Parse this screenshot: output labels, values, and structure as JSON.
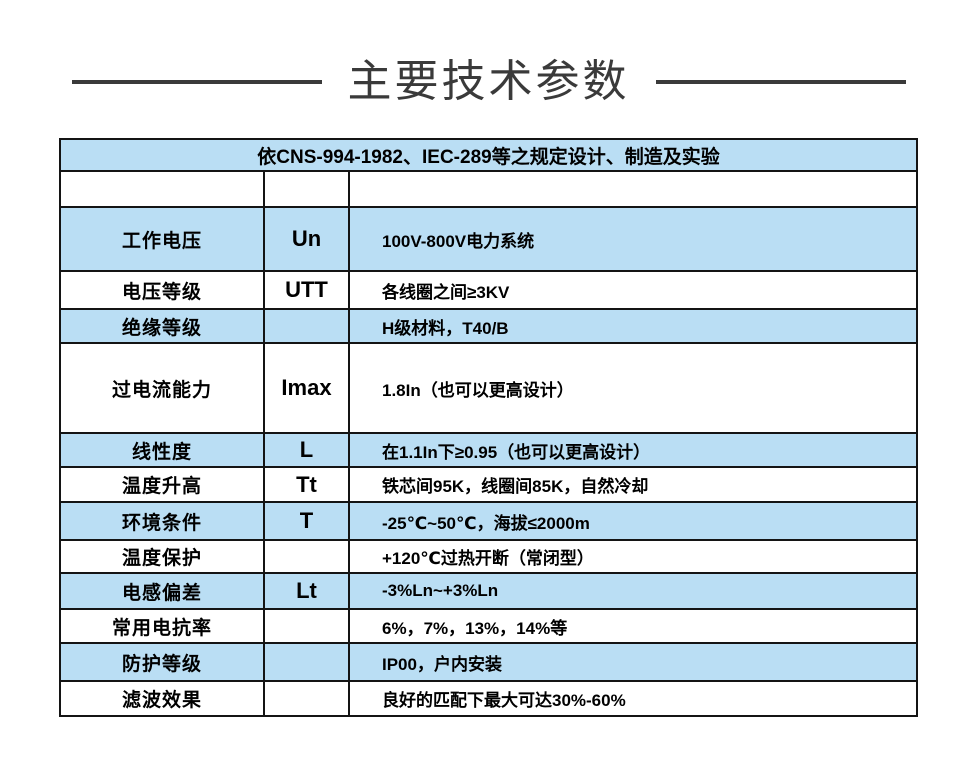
{
  "page": {
    "title": "主要技术参数"
  },
  "table": {
    "header": "依CNS-994-1982、IEC-289等之规定设计、制造及实验",
    "rows": [
      {
        "param": "",
        "symbol": "",
        "value": ""
      },
      {
        "param": "工作电压",
        "symbol": "Un",
        "value": "100V-800V电力系统"
      },
      {
        "param": "电压等级",
        "symbol": "UTT",
        "value": "各线圈之间≥3KV"
      },
      {
        "param": "绝缘等级",
        "symbol": "",
        "value": "H级材料，T40/B"
      },
      {
        "param": "过电流能力",
        "symbol": "Imax",
        "value": "1.8In（也可以更高设计）"
      },
      {
        "param": "线性度",
        "symbol": "L",
        "value": "在1.1In下≥0.95（也可以更高设计）"
      },
      {
        "param": "温度升高",
        "symbol": "Tt",
        "value": "铁芯间95K，线圈间85K，自然冷却"
      },
      {
        "param": "环境条件",
        "symbol": "T",
        "value": "-25℃~50℃，海拔≤2000m"
      },
      {
        "param": "温度保护",
        "symbol": "",
        "value": "+120℃过热开断（常闭型）"
      },
      {
        "param": "电感偏差",
        "symbol": "Lt",
        "value": "-3%Ln~+3%Ln"
      },
      {
        "param": "常用电抗率",
        "symbol": "",
        "value": "6%，7%，13%，14%等"
      },
      {
        "param": "防护等级",
        "symbol": "",
        "value": "IP00，户内安装"
      },
      {
        "param": "滤波效果",
        "symbol": "",
        "value": "良好的匹配下最大可达30%-60%"
      }
    ]
  },
  "colors": {
    "row_shade": "#badef4",
    "border": "#141414",
    "title": "#3a3a3a"
  }
}
